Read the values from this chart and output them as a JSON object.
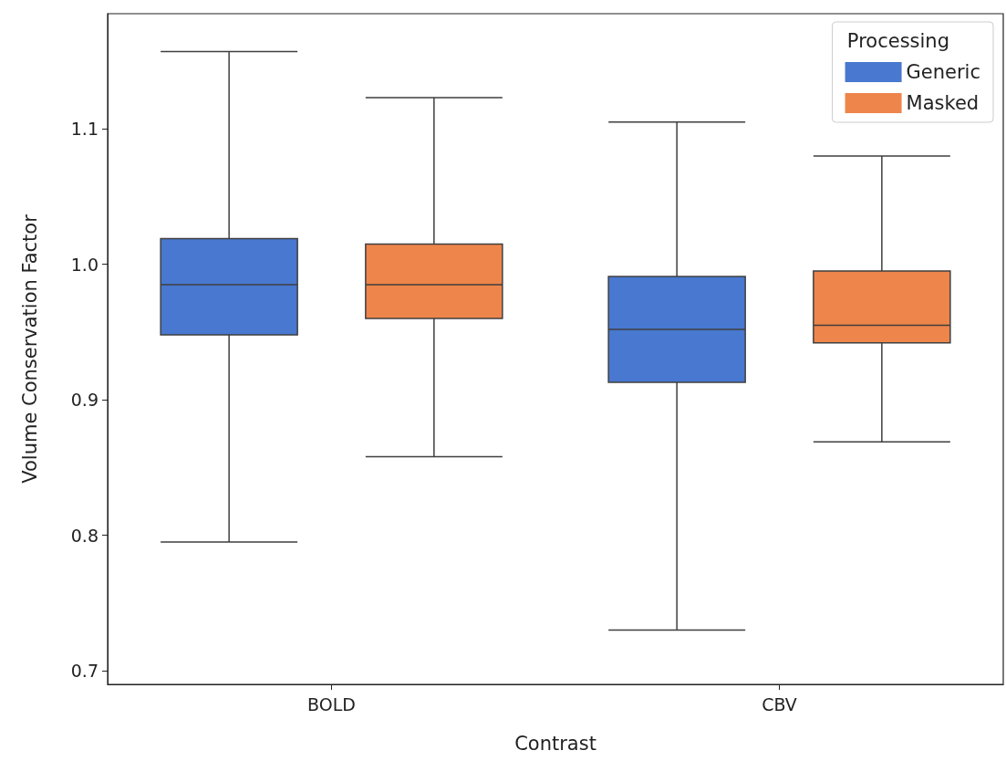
{
  "chart_data": {
    "type": "box",
    "xlabel": "Contrast",
    "ylabel": "Volume Conservation Factor",
    "legend_title": "Processing",
    "legend": "top right",
    "grid": false,
    "categories": [
      "BOLD",
      "CBV"
    ],
    "ylim": [
      0.69,
      1.185
    ],
    "yticks": [
      0.7,
      0.8,
      0.9,
      {
        "value": 1.0,
        "label": "1.0"
      },
      1.1
    ],
    "series": [
      {
        "name": "Generic",
        "color": "#4878d0",
        "boxes": [
          {
            "low": 0.795,
            "q1": 0.948,
            "median": 0.985,
            "q3": 1.019,
            "high": 1.157
          },
          {
            "low": 0.73,
            "q1": 0.913,
            "median": 0.952,
            "q3": 0.991,
            "high": 1.105
          }
        ]
      },
      {
        "name": "Masked",
        "color": "#ee854a",
        "boxes": [
          {
            "low": 0.858,
            "q1": 0.96,
            "median": 0.985,
            "q3": 1.015,
            "high": 1.123
          },
          {
            "low": 0.869,
            "q1": 0.942,
            "median": 0.955,
            "q3": 0.995,
            "high": 1.08
          }
        ]
      }
    ]
  }
}
